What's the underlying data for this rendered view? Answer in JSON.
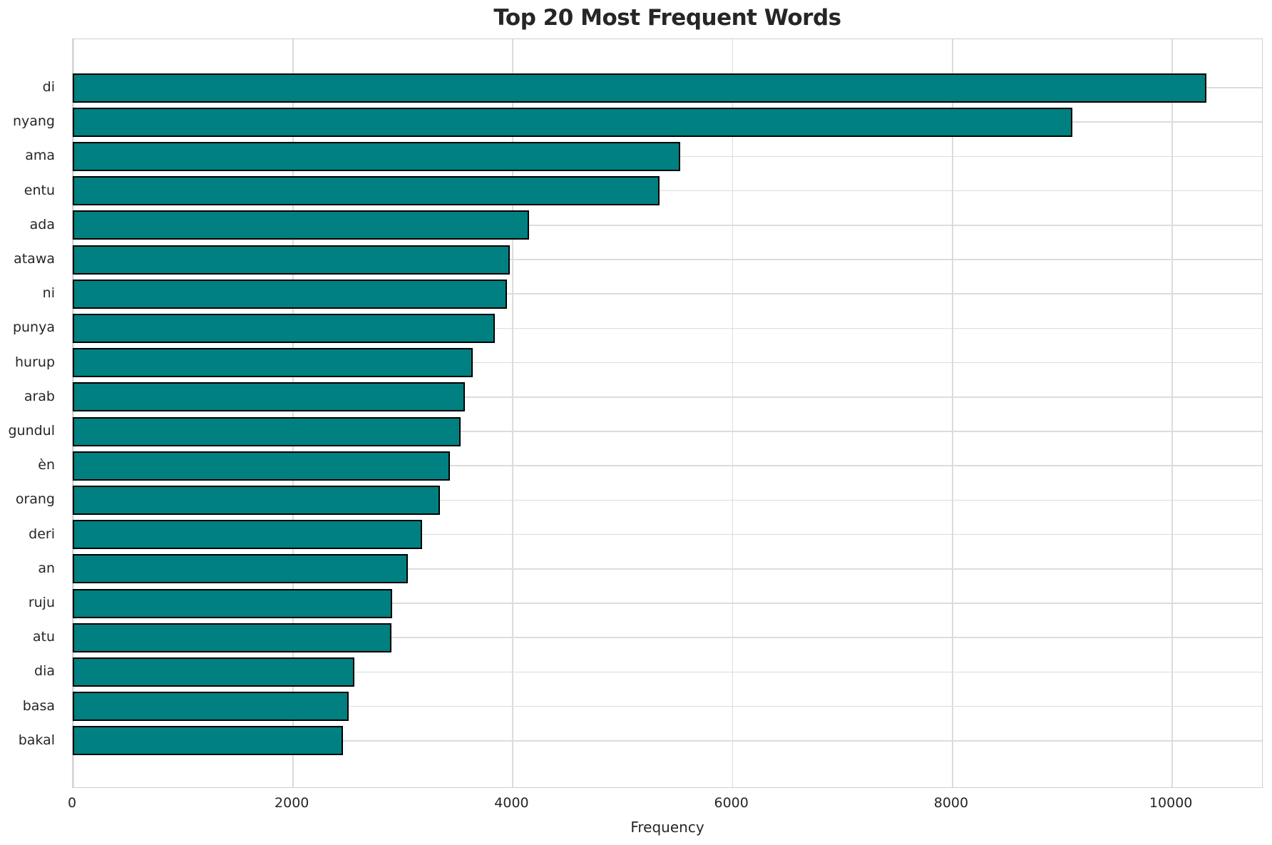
{
  "chart_data": {
    "type": "bar",
    "orientation": "horizontal",
    "title": "Top 20 Most Frequent Words",
    "xlabel": "Frequency",
    "ylabel": "",
    "categories": [
      "di",
      "nyang",
      "ama",
      "entu",
      "ada",
      "atawa",
      "ni",
      "punya",
      "hurup",
      "arab",
      "gundul",
      "èn",
      "orang",
      "deri",
      "an",
      "ruju",
      "atu",
      "dia",
      "basa",
      "bakal"
    ],
    "values": [
      10320,
      9100,
      5530,
      5340,
      4150,
      3980,
      3950,
      3840,
      3640,
      3570,
      3530,
      3430,
      3340,
      3180,
      3050,
      2905,
      2900,
      2560,
      2510,
      2460
    ],
    "xticks": [
      0,
      2000,
      4000,
      6000,
      8000,
      10000
    ],
    "xlim": [
      0,
      10836
    ],
    "grid": true,
    "legend": false,
    "colors": {
      "bar_fill": "#008080",
      "bar_edge": "#000000",
      "grid_line": "#dcdcdc",
      "spine": "#cfcfcf",
      "text": "#262626",
      "background": "#ffffff"
    }
  }
}
